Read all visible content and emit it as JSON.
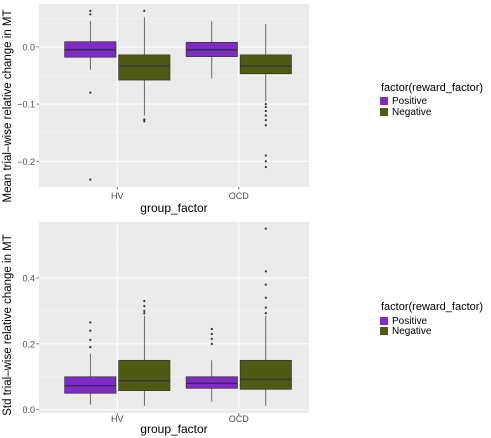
{
  "colors": {
    "panel_bg": "#EBEBEB",
    "grid_major": "#FFFFFF",
    "grid_minor": "#F5F5F5",
    "positive": "#7F2BC4",
    "negative": "#4F5A12",
    "outline": "#333333"
  },
  "legend": {
    "title": "factor(reward_factor)",
    "items": [
      "Positive",
      "Negative"
    ]
  },
  "chart_data": [
    {
      "type": "boxplot",
      "xlabel": "group_factor",
      "ylabel": "Mean trial–wise relative change in MT",
      "categories": [
        "HV",
        "OCD"
      ],
      "ylim": [
        -0.245,
        0.075
      ],
      "yticks": [
        -0.2,
        -0.1,
        0.0
      ],
      "ytick_labels": [
        "−0.2",
        "−0.1",
        "0.0"
      ],
      "grid": true,
      "legend_position": "right",
      "series": [
        {
          "name": "Positive",
          "boxes": [
            {
              "category": "HV",
              "whisker_low": -0.04,
              "q1": -0.018,
              "median": -0.005,
              "q3": 0.009,
              "whisker_high": 0.045,
              "outliers": [
                0.063,
                0.057,
                -0.08,
                -0.232
              ]
            },
            {
              "category": "OCD",
              "whisker_low": -0.055,
              "q1": -0.017,
              "median": -0.005,
              "q3": 0.008,
              "whisker_high": 0.045,
              "outliers": []
            }
          ]
        },
        {
          "name": "Negative",
          "boxes": [
            {
              "category": "HV",
              "whisker_low": -0.12,
              "q1": -0.058,
              "median": -0.033,
              "q3": -0.014,
              "whisker_high": 0.052,
              "outliers": [
                0.063,
                -0.127,
                -0.13
              ]
            },
            {
              "category": "OCD",
              "whisker_low": -0.095,
              "q1": -0.047,
              "median": -0.033,
              "q3": -0.014,
              "whisker_high": 0.04,
              "outliers": [
                -0.1,
                -0.105,
                -0.112,
                -0.12,
                -0.128,
                -0.137,
                -0.19,
                -0.2,
                -0.21
              ]
            }
          ]
        }
      ]
    },
    {
      "type": "boxplot",
      "xlabel": "group_factor",
      "ylabel": "Std trial–wise relative change in MT",
      "categories": [
        "HV",
        "OCD"
      ],
      "ylim": [
        -0.01,
        0.57
      ],
      "yticks": [
        0.0,
        0.2,
        0.4
      ],
      "ytick_labels": [
        "0.0",
        "0.2",
        "0.4"
      ],
      "grid": true,
      "legend_position": "right",
      "series": [
        {
          "name": "Positive",
          "boxes": [
            {
              "category": "HV",
              "whisker_low": 0.015,
              "q1": 0.05,
              "median": 0.073,
              "q3": 0.1,
              "whisker_high": 0.17,
              "outliers": [
                0.19,
                0.212,
                0.24,
                0.265
              ]
            },
            {
              "category": "OCD",
              "whisker_low": 0.025,
              "q1": 0.065,
              "median": 0.08,
              "q3": 0.1,
              "whisker_high": 0.15,
              "outliers": [
                0.2,
                0.215,
                0.23,
                0.245
              ]
            }
          ]
        },
        {
          "name": "Negative",
          "boxes": [
            {
              "category": "HV",
              "whisker_low": 0.012,
              "q1": 0.058,
              "median": 0.088,
              "q3": 0.15,
              "whisker_high": 0.285,
              "outliers": [
                0.293,
                0.3,
                0.315,
                0.33
              ]
            },
            {
              "category": "OCD",
              "whisker_low": 0.012,
              "q1": 0.062,
              "median": 0.092,
              "q3": 0.15,
              "whisker_high": 0.285,
              "outliers": [
                0.293,
                0.31,
                0.34,
                0.38,
                0.42,
                0.55
              ]
            }
          ]
        }
      ]
    }
  ]
}
